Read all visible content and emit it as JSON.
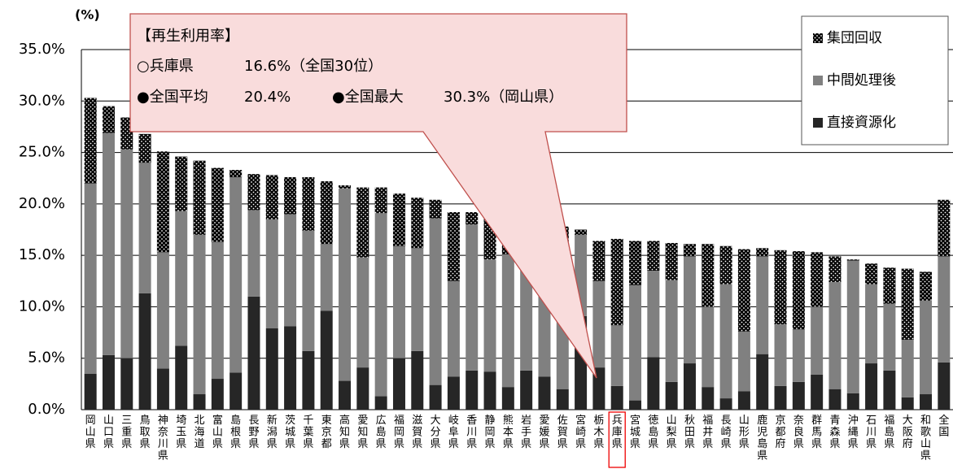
{
  "chart_data": {
    "type": "stacked_bar",
    "y_axis_label": "(%)",
    "categories": [
      "岡山県",
      "山口県",
      "三重県",
      "鳥取県",
      "神奈川県",
      "埼玉県",
      "北海道",
      "富山県",
      "島根県",
      "長野県",
      "新潟県",
      "茨城県",
      "千葉県",
      "東京都",
      "高知県",
      "愛知県",
      "広島県",
      "福岡県",
      "滋賀県",
      "大分県",
      "岐阜県",
      "香川県",
      "静岡県",
      "熊本県",
      "岩手県",
      "愛媛県",
      "佐賀県",
      "宮崎県",
      "栃木県",
      "兵庫県",
      "宮城県",
      "徳島県",
      "山梨県",
      "秋田県",
      "福井県",
      "長崎県",
      "山形県",
      "鹿児島県",
      "京都府",
      "奈良県",
      "群馬県",
      "青森県",
      "沖縄県",
      "石川県",
      "福島県",
      "大阪府",
      "和歌山県",
      "全国"
    ],
    "highlight": "兵庫県",
    "series": [
      {
        "name": "直接資源化",
        "color": "#262626",
        "values": [
          3.5,
          5.3,
          5.0,
          11.3,
          4.0,
          6.2,
          1.5,
          3.0,
          3.6,
          11.0,
          7.9,
          8.1,
          5.7,
          9.6,
          2.8,
          4.1,
          1.3,
          5.0,
          5.7,
          2.4,
          3.2,
          3.8,
          3.7,
          2.2,
          3.8,
          3.2,
          2.0,
          9.1,
          4.1,
          2.3,
          0.9,
          5.1,
          2.7,
          4.5,
          2.2,
          1.1,
          1.8,
          5.4,
          2.3,
          2.7,
          3.4,
          2.0,
          1.6,
          4.5,
          3.8,
          1.2,
          1.5,
          4.6
        ]
      },
      {
        "name": "中間処理後",
        "color": "#808080",
        "values": [
          18.5,
          21.6,
          20.3,
          12.7,
          11.3,
          13.1,
          15.5,
          13.3,
          19.0,
          8.4,
          10.6,
          10.9,
          11.7,
          6.5,
          18.7,
          10.7,
          17.8,
          10.9,
          10.0,
          16.2,
          9.3,
          14.2,
          10.9,
          12.9,
          9.8,
          12.7,
          13.6,
          7.9,
          8.4,
          5.9,
          11.2,
          8.4,
          9.9,
          10.4,
          7.8,
          11.1,
          5.8,
          9.5,
          6.0,
          5.1,
          6.6,
          10.4,
          12.9,
          7.7,
          6.5,
          5.6,
          9.1,
          10.3
        ]
      },
      {
        "name": "集団回収",
        "color": "#000000",
        "pattern": "dots",
        "values": [
          8.3,
          2.6,
          3.1,
          2.8,
          9.8,
          5.3,
          7.2,
          7.2,
          0.7,
          3.5,
          4.3,
          3.6,
          5.2,
          6.1,
          0.3,
          6.8,
          2.5,
          5.1,
          4.9,
          1.8,
          6.7,
          1.2,
          4.5,
          3.8,
          4.8,
          2.1,
          2.2,
          0.5,
          3.9,
          8.4,
          4.3,
          2.9,
          3.6,
          1.2,
          6.1,
          3.7,
          8.0,
          0.8,
          7.2,
          7.6,
          5.3,
          2.5,
          0.1,
          2.0,
          3.5,
          6.9,
          2.8,
          5.5
        ]
      }
    ],
    "ylim": [
      0,
      35
    ],
    "yticks": [
      {
        "value": 0,
        "label": "0.0%"
      },
      {
        "value": 5,
        "label": "5.0%"
      },
      {
        "value": 10,
        "label": "10.0%"
      },
      {
        "value": 15,
        "label": "15.0%"
      },
      {
        "value": 20,
        "label": "20.0%"
      },
      {
        "value": 25,
        "label": "25.0%"
      },
      {
        "value": 30,
        "label": "30.0%"
      },
      {
        "value": 35,
        "label": "35.0%"
      }
    ],
    "grid": true,
    "legend": "top-right",
    "callout": {
      "title": "【再生利用率】",
      "lines": [
        [
          "○兵庫県",
          "16.6%（全国30位）"
        ],
        [
          "●全国平均",
          "20.4%",
          "●全国最大",
          "30.3%（岡山県）"
        ]
      ]
    }
  }
}
